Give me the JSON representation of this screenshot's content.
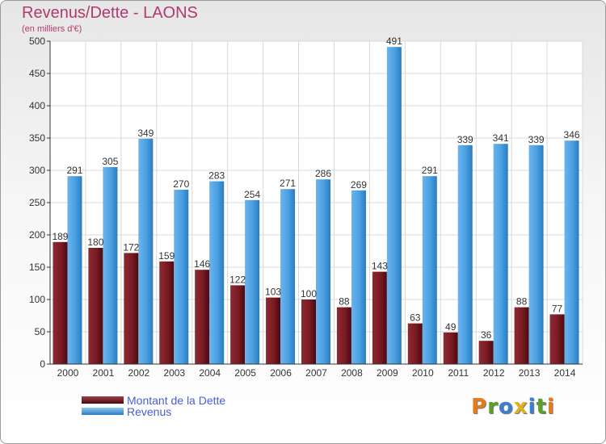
{
  "title": "Revenus/Dette - LAONS",
  "subtitle": "(en milliers d'€)",
  "logo_text": "Proxiti",
  "colors": {
    "debt": "#7a1a22",
    "revenue": "#4a9fe0",
    "title": "#b03a6e",
    "legend_text": "#4a5fd0",
    "logo": [
      "#e87a1a",
      "#5aa02c",
      "#3a7fd0",
      "#e0b020",
      "#3a7fd0",
      "#5aa02c",
      "#e87a1a"
    ]
  },
  "legend": {
    "position": "bottom-left",
    "debt_label": "Montant de la Dette",
    "revenue_label": "Revenus"
  },
  "chart_data": {
    "type": "bar",
    "title": "Revenus/Dette - LAONS",
    "subtitle": "(en milliers d'€)",
    "xlabel": "",
    "ylabel": "",
    "ylim": [
      0,
      500
    ],
    "yticks": [
      0,
      50,
      100,
      150,
      200,
      250,
      300,
      350,
      400,
      450,
      500
    ],
    "grid": true,
    "categories": [
      "2000",
      "2001",
      "2002",
      "2003",
      "2004",
      "2005",
      "2006",
      "2007",
      "2008",
      "2009",
      "2010",
      "2011",
      "2012",
      "2013",
      "2014"
    ],
    "series": [
      {
        "name": "Montant de la Dette",
        "values": [
          189,
          180,
          172,
          159,
          146,
          122,
          103,
          100,
          88,
          143,
          63,
          49,
          36,
          88,
          77
        ]
      },
      {
        "name": "Revenus",
        "values": [
          291,
          305,
          349,
          270,
          283,
          254,
          271,
          286,
          269,
          491,
          291,
          339,
          341,
          339,
          346
        ]
      }
    ]
  }
}
